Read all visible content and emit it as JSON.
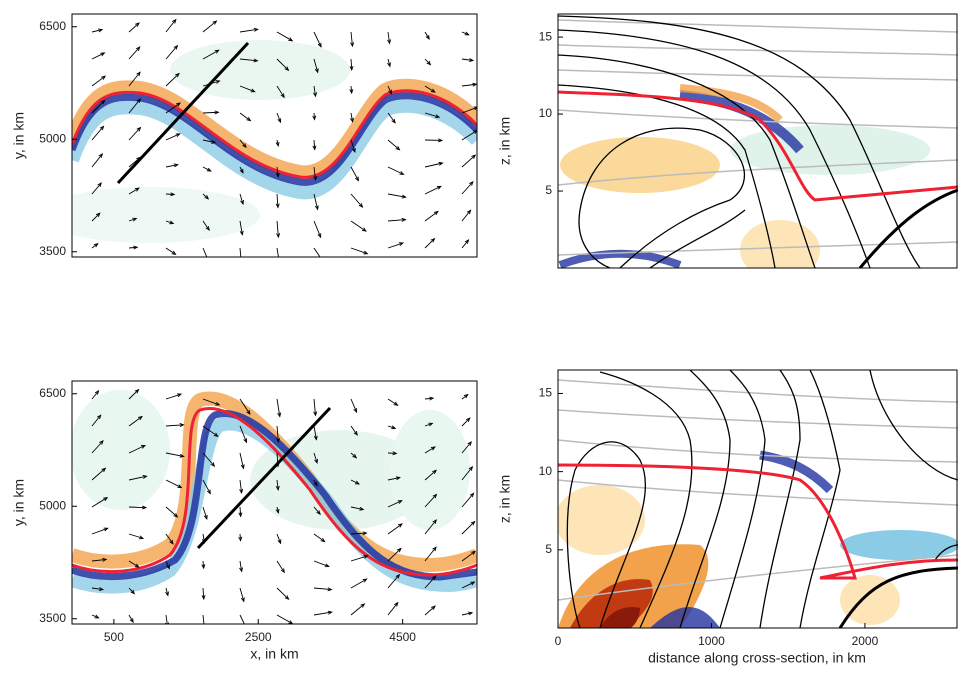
{
  "chart_data": [
    {
      "type": "contour",
      "ylabel": "y, in km",
      "xlim": [
        -80,
        5530
      ],
      "ylim": [
        3430,
        6670
      ],
      "yticks": [
        3500,
        5000,
        6500
      ]
    },
    {
      "type": "contour",
      "ylabel": "z, in km",
      "xlim": [
        0,
        2600
      ],
      "ylim": [
        0,
        16.5
      ],
      "yticks": [
        5,
        10,
        15
      ]
    },
    {
      "type": "contour",
      "ylabel": "y, in km",
      "xlabel": "x, in km",
      "xlim": [
        -80,
        5530
      ],
      "ylim": [
        3430,
        6670
      ],
      "xticks": [
        500,
        2500,
        4500
      ],
      "yticks": [
        3500,
        5000,
        6500
      ]
    },
    {
      "type": "contour",
      "ylabel": "z, in km",
      "xlabel": "distance along cross-section, in km",
      "xlim": [
        0,
        2600
      ],
      "ylim": [
        0,
        16.5
      ],
      "xticks": [
        0,
        1000,
        2000
      ],
      "yticks": [
        5,
        10,
        15
      ]
    }
  ]
}
